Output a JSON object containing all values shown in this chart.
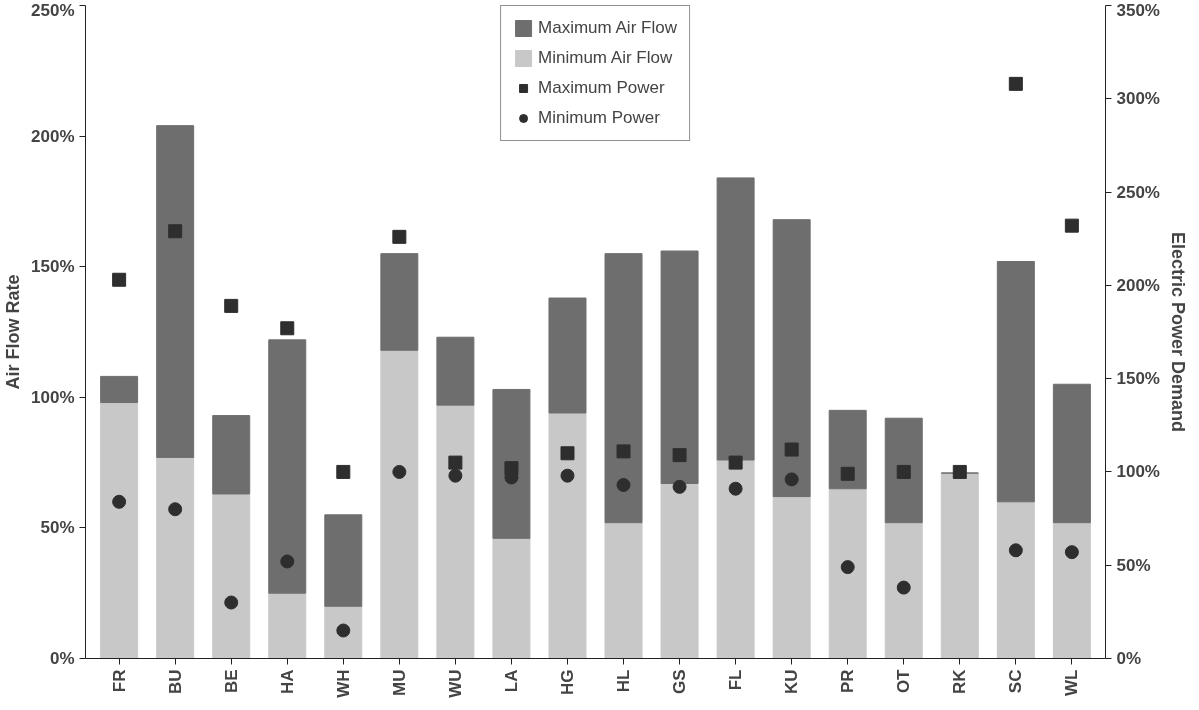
{
  "chart_data": {
    "type": "bar",
    "stacked": true,
    "ylabel": "Air Flow Rate",
    "y2label": "Electric Power Demand",
    "categories": [
      "FR",
      "BU",
      "BE",
      "HA",
      "WH",
      "MU",
      "WU",
      "LA",
      "HG",
      "HL",
      "GS",
      "FL",
      "KU",
      "PR",
      "OT",
      "RK",
      "SC",
      "WL"
    ],
    "series": [
      {
        "name": "Minimum Air Flow",
        "type": "bar",
        "color": "#c8c8c8",
        "values": [
          98,
          77,
          63,
          25,
          20,
          118,
          97,
          46,
          94,
          52,
          67,
          76,
          62,
          65,
          52,
          71,
          60,
          52
        ]
      },
      {
        "name": "Maximum Air Flow",
        "type": "bar",
        "color": "#6e6e6e",
        "values": [
          10,
          127,
          30,
          97,
          35,
          37,
          26,
          57,
          44,
          103,
          89,
          108,
          106,
          30,
          40,
          0,
          92,
          53
        ]
      },
      {
        "name": "Maximum Power",
        "type": "scatter",
        "marker": "square",
        "axis": "y2",
        "color": "#2e2e2e",
        "values": [
          203,
          229,
          189,
          177,
          100,
          226,
          105,
          102,
          110,
          111,
          109,
          105,
          112,
          99,
          100,
          100,
          308,
          232
        ]
      },
      {
        "name": "Minimum Power",
        "type": "scatter",
        "marker": "circle",
        "axis": "y2",
        "color": "#2e2e2e",
        "values": [
          84,
          80,
          30,
          52,
          15,
          100,
          98,
          97,
          98,
          93,
          92,
          91,
          96,
          49,
          38,
          null,
          58,
          57
        ]
      }
    ],
    "ylim": [
      0,
      250
    ],
    "yticks": [
      {
        "value": 0,
        "label": "0%"
      },
      {
        "value": 50,
        "label": "50%"
      },
      {
        "value": 100,
        "label": "100%"
      },
      {
        "value": 150,
        "label": "150%"
      },
      {
        "value": 200,
        "label": "200%"
      },
      {
        "value": 250,
        "label": "250%"
      }
    ],
    "y2lim": [
      0,
      350
    ],
    "y2ticks": [
      {
        "value": 0,
        "label": "0%"
      },
      {
        "value": 50,
        "label": "50%"
      },
      {
        "value": 100,
        "label": "100%"
      },
      {
        "value": 150,
        "label": "150%"
      },
      {
        "value": 200,
        "label": "200%"
      },
      {
        "value": 250,
        "label": "250%"
      },
      {
        "value": 300,
        "label": "300%"
      },
      {
        "value": 350,
        "label": "350%"
      }
    ],
    "legend": "top",
    "grid": false
  }
}
